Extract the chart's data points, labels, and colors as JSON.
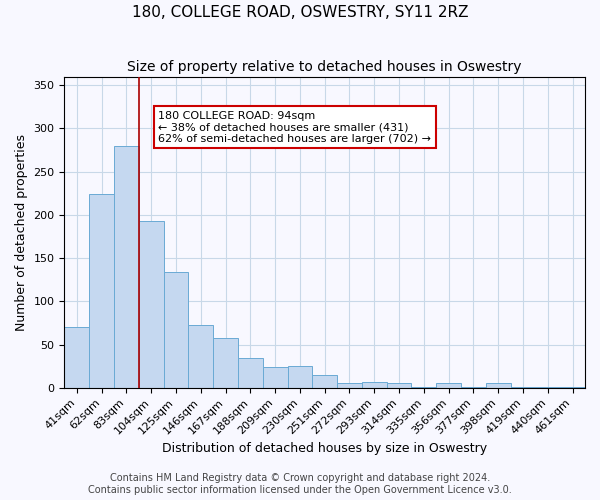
{
  "title": "180, COLLEGE ROAD, OSWESTRY, SY11 2RZ",
  "subtitle": "Size of property relative to detached houses in Oswestry",
  "xlabel": "Distribution of detached houses by size in Oswestry",
  "ylabel": "Number of detached properties",
  "categories": [
    "41sqm",
    "62sqm",
    "83sqm",
    "104sqm",
    "125sqm",
    "146sqm",
    "167sqm",
    "188sqm",
    "209sqm",
    "230sqm",
    "251sqm",
    "272sqm",
    "293sqm",
    "314sqm",
    "335sqm",
    "356sqm",
    "377sqm",
    "398sqm",
    "419sqm",
    "440sqm",
    "461sqm"
  ],
  "values": [
    70,
    224,
    280,
    193,
    134,
    73,
    58,
    34,
    24,
    25,
    15,
    5,
    7,
    5,
    1,
    5,
    1,
    6,
    1,
    1,
    1
  ],
  "bar_color": "#c5d8f0",
  "bar_edge_color": "#6aaad4",
  "vline_x": 2.5,
  "vline_color": "#aa0000",
  "annotation_text": "180 COLLEGE ROAD: 94sqm\n← 38% of detached houses are smaller (431)\n62% of semi-detached houses are larger (702) →",
  "annotation_box_color": "#ffffff",
  "annotation_box_edge": "#cc0000",
  "ylim": [
    0,
    360
  ],
  "yticks": [
    0,
    50,
    100,
    150,
    200,
    250,
    300,
    350
  ],
  "footer_line1": "Contains HM Land Registry data © Crown copyright and database right 2024.",
  "footer_line2": "Contains public sector information licensed under the Open Government Licence v3.0.",
  "background_color": "#f8f8ff",
  "title_fontsize": 11,
  "subtitle_fontsize": 10,
  "axis_label_fontsize": 9,
  "tick_fontsize": 8,
  "footer_fontsize": 7
}
